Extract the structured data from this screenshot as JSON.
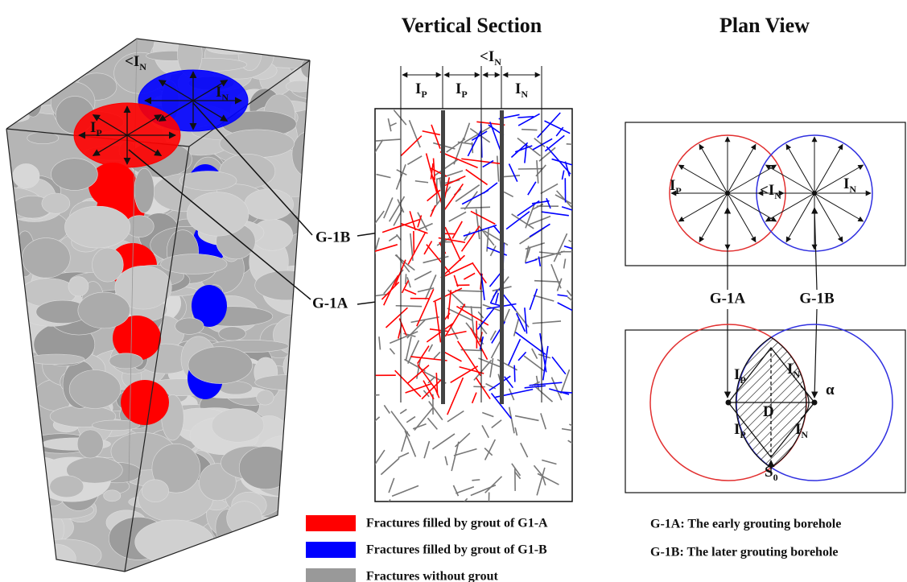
{
  "model_3d": {
    "labels": [
      {
        "prefix": "<",
        "main": "I",
        "sub": "N"
      },
      {
        "main": "I",
        "sub": "P"
      },
      {
        "main": "I",
        "sub": "N"
      }
    ]
  },
  "callouts": {
    "upper": "G-1B",
    "lower": "G-1A"
  },
  "vertical_section": {
    "title": "Vertical Section",
    "labels": [
      {
        "main": "I",
        "sub": "P"
      },
      {
        "main": "I",
        "sub": "P"
      },
      {
        "prefix": "<",
        "main": "I",
        "sub": "N"
      },
      {
        "main": "I",
        "sub": "N"
      }
    ]
  },
  "plan_view": {
    "title": "Plan View",
    "top_labels": [
      {
        "main": "I",
        "sub": "P"
      },
      {
        "prefix": "<",
        "main": "I",
        "sub": "N"
      },
      {
        "main": "I",
        "sub": "N"
      }
    ],
    "boreholes": [
      "G-1A",
      "G-1B"
    ],
    "bottom_labels": [
      {
        "main": "I",
        "sub": "P"
      },
      {
        "main": "I",
        "sub": "N"
      },
      {
        "main": "α"
      },
      {
        "main": "D"
      },
      {
        "main": "I",
        "sub": "P"
      },
      {
        "main": "I",
        "sub": "N"
      },
      {
        "main": "S",
        "sub": "0"
      }
    ]
  },
  "legend": [
    {
      "label": "Fractures filled by grout of G1-A",
      "color": "#ff0000"
    },
    {
      "label": "Fractures filled by grout of G1-B",
      "color": "#0000ff"
    },
    {
      "label": "Fractures without grout",
      "color": "#999999"
    }
  ],
  "notes": [
    "G-1A:  The early grouting borehole",
    "G-1B:  The later grouting borehole"
  ]
}
